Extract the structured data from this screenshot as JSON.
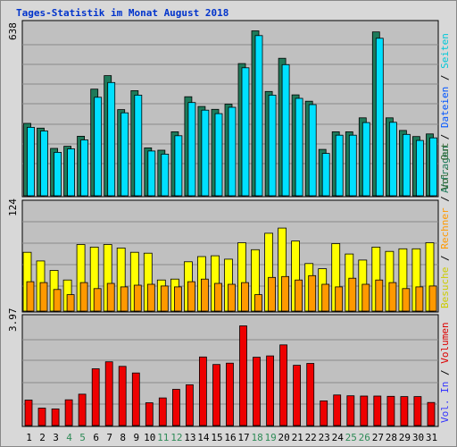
{
  "chart_data": {
    "type": "bar",
    "title": "Tages-Statistik im Monat August 2018",
    "categories": [
      "1",
      "2",
      "3",
      "4",
      "5",
      "6",
      "7",
      "8",
      "9",
      "10",
      "11",
      "12",
      "13",
      "14",
      "15",
      "16",
      "17",
      "18",
      "19",
      "20",
      "21",
      "22",
      "23",
      "24",
      "25",
      "26",
      "27",
      "28",
      "29",
      "30",
      "31"
    ],
    "weekend_days": [
      "4",
      "5",
      "11",
      "12",
      "18",
      "19",
      "25",
      "26"
    ],
    "grid": true,
    "panels": [
      {
        "name": "top",
        "ymax_label": "638",
        "ymax": 638,
        "series": [
          {
            "name": "Anfragen",
            "color": "#1e7a5a",
            "values": [
              275,
              257,
              180,
              188,
              226,
              405,
              456,
              327,
              399,
              182,
              173,
              243,
              376,
              339,
              328,
              348,
              502,
              626,
              396,
              522,
              383,
              359,
              176,
              243,
              243,
              296,
              622,
              296,
              248,
              225,
              235
            ]
          },
          {
            "name": "Dateien",
            "color": "#00e0ff",
            "values": [
              260,
              246,
              165,
              178,
              212,
              374,
              430,
              315,
              382,
              170,
              158,
              228,
              354,
              325,
              312,
              336,
              486,
              608,
              382,
              498,
              370,
              346,
              161,
              230,
              230,
              278,
              598,
              279,
              233,
              210,
              220
            ]
          },
          {
            "name": "Seiten",
            "color": "#00c8c8",
            "values": [
              0,
              0,
              0,
              0,
              0,
              0,
              0,
              0,
              0,
              0,
              0,
              0,
              0,
              0,
              0,
              0,
              0,
              0,
              0,
              0,
              0,
              0,
              0,
              0,
              0,
              0,
              0,
              0,
              0,
              0,
              0
            ]
          }
        ],
        "axis_labels": [
          {
            "text": "Anfragen",
            "color": "#1e7a5a"
          },
          {
            "text": "Dateien",
            "color": "#0055ff"
          },
          {
            "text": "Seiten",
            "color": "#00c8d8"
          }
        ]
      },
      {
        "name": "middle",
        "ymax_label": "124",
        "ymax": 124,
        "series": [
          {
            "name": "Besuche",
            "color": "#ffff00",
            "values": [
              68,
              58,
              47,
              36,
              77,
              74,
              77,
              73,
              68,
              67,
              36,
              37,
              57,
              63,
              64,
              60,
              79,
              71,
              90,
              96,
              81,
              55,
              49,
              78,
              66,
              59,
              74,
              69,
              72,
              72,
              79
            ]
          },
          {
            "name": "Rechner",
            "color": "#ff9900",
            "values": [
              34,
              33,
              25,
              19,
              33,
              26,
              32,
              28,
              30,
              31,
              29,
              28,
              34,
              37,
              32,
              31,
              33,
              19,
              39,
              40,
              36,
              41,
              31,
              28,
              38,
              31,
              36,
              33,
              26,
              28,
              29
            ]
          }
        ],
        "axis_labels": [
          {
            "text": "Besuche",
            "color": "#cccc00"
          },
          {
            "text": "Rechner",
            "color": "#ff9900"
          },
          {
            "text": "Vol. Out",
            "color": "#336633"
          }
        ]
      },
      {
        "name": "bottom",
        "ymax_label": "3.97",
        "ymax": 3.97,
        "series": [
          {
            "name": "Volumen",
            "color": "#ee0000",
            "values": [
              0.95,
              0.65,
              0.62,
              0.96,
              1.17,
              2.12,
              2.38,
              2.21,
              1.96,
              0.85,
              1.03,
              1.35,
              1.52,
              2.56,
              2.28,
              2.33,
              3.72,
              2.55,
              2.6,
              3.01,
              2.25,
              2.32,
              0.92,
              1.14,
              1.11,
              1.1,
              1.1,
              1.09,
              1.08,
              1.08,
              0.86
            ]
          }
        ],
        "axis_labels": [
          {
            "text": "Vol. In",
            "color": "#3333ff"
          },
          {
            "text": "Volumen",
            "color": "#dd0000"
          }
        ]
      }
    ]
  }
}
